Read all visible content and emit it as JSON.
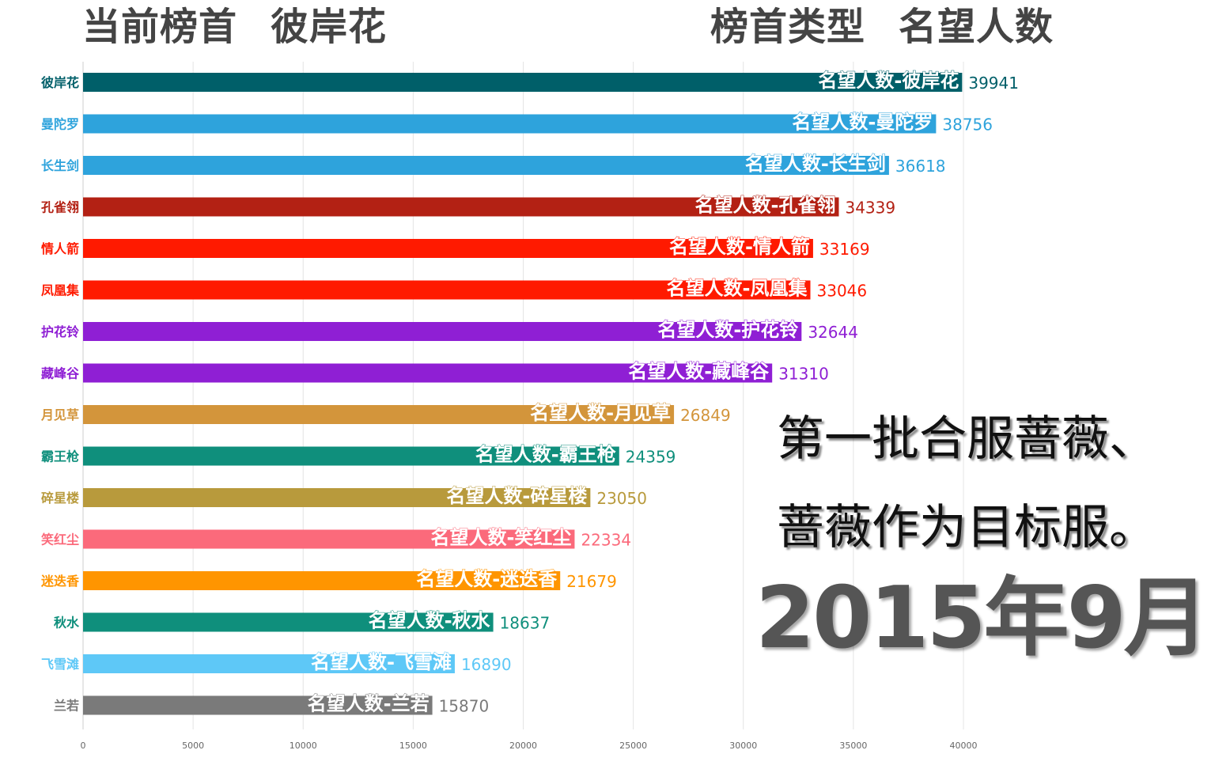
{
  "header": {
    "current_leader_label": "当前榜首",
    "current_leader_value": "彼岸花",
    "ranking_type_label": "榜首类型",
    "ranking_type_value": "名望人数"
  },
  "overlay": {
    "line1": "第一批合服蔷薇、",
    "line2": "蔷薇作为目标服。"
  },
  "date_label": "2015年9月",
  "chart_data": {
    "type": "bar",
    "orientation": "horizontal",
    "categories": [
      "彼岸花",
      "曼陀罗",
      "长生剑",
      "孔雀翎",
      "情人箭",
      "凤凰集",
      "护花铃",
      "藏峰谷",
      "月见草",
      "霸王枪",
      "碎星楼",
      "笑红尘",
      "迷迭香",
      "秋水",
      "飞雪滩",
      "兰若"
    ],
    "bar_labels": [
      "名望人数-彼岸花",
      "名望人数-曼陀罗",
      "名望人数-长生剑",
      "名望人数-孔雀翎",
      "名望人数-情人箭",
      "名望人数-凤凰集",
      "名望人数-护花铃",
      "名望人数-藏峰谷",
      "名望人数-月见草",
      "名望人数-霸王枪",
      "名望人数-碎星楼",
      "名望人数-笑红尘",
      "名望人数-迷迭香",
      "名望人数-秋水",
      "名望人数-飞雪滩",
      "名望人数-兰若"
    ],
    "values": [
      39941,
      38756,
      36618,
      34339,
      33169,
      33046,
      32644,
      31310,
      26849,
      24359,
      23050,
      22334,
      21679,
      18637,
      16890,
      15870
    ],
    "colors": [
      "#005f69",
      "#2ea3dc",
      "#2ea3dc",
      "#b32114",
      "#ff1a00",
      "#ff1a00",
      "#8f1fd4",
      "#8f1fd4",
      "#d3953b",
      "#0f8f7c",
      "#b89a3c",
      "#fb6a7b",
      "#ff9500",
      "#0f8f7c",
      "#5ec8f7",
      "#7a7a7a"
    ],
    "xticks": [
      0,
      5000,
      10000,
      15000,
      20000,
      25000,
      30000,
      35000,
      40000
    ],
    "xlim": [
      0,
      40000
    ],
    "grid": "vertical"
  }
}
